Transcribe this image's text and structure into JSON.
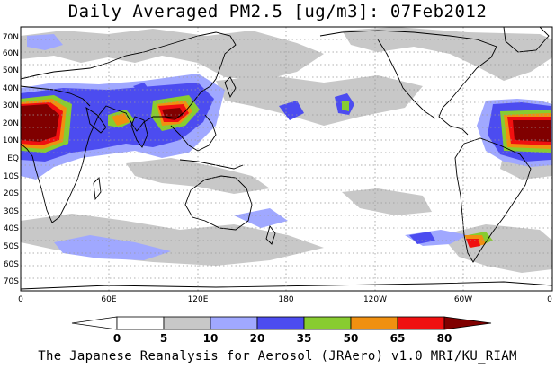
{
  "title": "Daily Averaged PM2.5 [ug/m3]: 07Feb2012",
  "lat_labels": [
    "70N",
    "60N",
    "50N",
    "40N",
    "30N",
    "20N",
    "10N",
    "EQ",
    "10S",
    "20S",
    "30S",
    "40S",
    "50S",
    "60S",
    "70S"
  ],
  "lon_labels": [
    "0",
    "60E",
    "120E",
    "180",
    "120W",
    "60W",
    "0"
  ],
  "colorbar": {
    "levels": [
      "0",
      "5",
      "10",
      "20",
      "35",
      "50",
      "65",
      "80"
    ],
    "colors": [
      "#ffffff",
      "#c8c8c8",
      "#a0a8ff",
      "#4c4cf0",
      "#88cc30",
      "#f09010",
      "#f01010",
      "#800000"
    ]
  },
  "credit": "The Japanese Reanalysis for Aerosol (JRAero) v1.0 MRI/KU_RIAM"
}
